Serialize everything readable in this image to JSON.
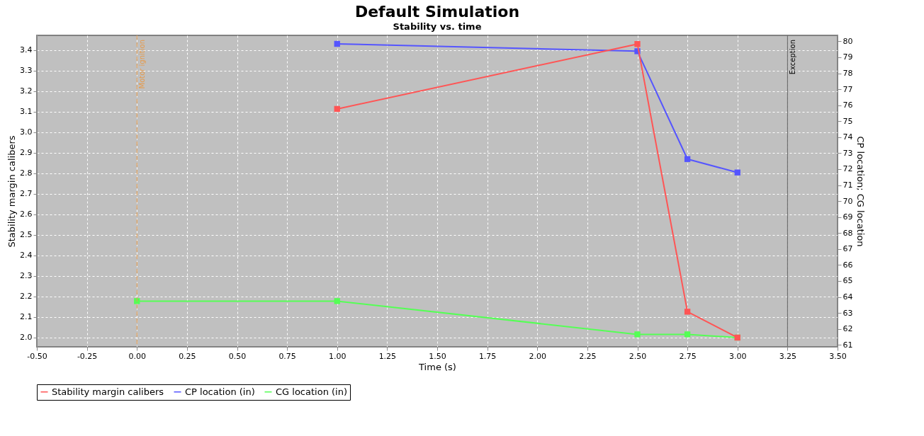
{
  "chart_data": {
    "type": "line",
    "title": "Default Simulation",
    "subtitle": "Stability vs. time",
    "xlabel": "Time (s)",
    "ylabel": "Stability margin calibers",
    "y2label": "CP location; CG location",
    "xlim": [
      -0.5,
      3.5
    ],
    "xticks": [
      {
        "value": -0.5,
        "label": "-0.50"
      },
      {
        "value": -0.25,
        "label": "-0.25"
      },
      {
        "value": 0,
        "label": "0.00"
      },
      {
        "value": 0.25,
        "label": "0.25"
      },
      {
        "value": 0.5,
        "label": "0.50"
      },
      {
        "value": 0.75,
        "label": "0.75"
      },
      {
        "value": 1,
        "label": "1.00"
      },
      {
        "value": 1.25,
        "label": "1.25"
      },
      {
        "value": 1.5,
        "label": "1.50"
      },
      {
        "value": 1.75,
        "label": "1.75"
      },
      {
        "value": 2,
        "label": "2.00"
      },
      {
        "value": 2.25,
        "label": "2.25"
      },
      {
        "value": 2.5,
        "label": "2.50"
      },
      {
        "value": 2.75,
        "label": "2.75"
      },
      {
        "value": 3,
        "label": "3.00"
      },
      {
        "value": 3.25,
        "label": "3.25"
      },
      {
        "value": 3.5,
        "label": "3.50"
      }
    ],
    "ylim": [
      1.955,
      3.471
    ],
    "yticks": [
      {
        "value": 2,
        "label": "2.0"
      },
      2.1,
      2.2,
      2.3,
      2.4,
      2.5,
      2.6,
      2.7,
      2.8,
      2.9,
      {
        "value": 3,
        "label": "3.0"
      },
      3.1,
      3.2,
      3.3,
      3.4
    ],
    "y2lim": [
      60.88,
      80.37
    ],
    "y2ticks": [
      61,
      62,
      63,
      64,
      65,
      66,
      67,
      68,
      69,
      70,
      71,
      72,
      73,
      74,
      75,
      76,
      77,
      78,
      79,
      80
    ],
    "series": [
      {
        "name": "Stability margin calibers",
        "color": "#ff5555",
        "x": [
          1,
          2.5,
          2.75,
          3
        ],
        "values": [
          3.113,
          3.429,
          2.126,
          2.0
        ]
      },
      {
        "name": "CP location (in)",
        "color": "#5555ff",
        "axis": "y2",
        "x": [
          1,
          2.5,
          2.75,
          3
        ],
        "values": [
          79.84,
          79.38,
          72.63,
          71.79
        ]
      },
      {
        "name": "CG location (in)",
        "color": "#55ff55",
        "axis": "y2",
        "x": [
          0,
          1,
          2.5,
          2.75,
          3
        ],
        "values": [
          63.74,
          63.74,
          61.66,
          61.66,
          61.46
        ]
      }
    ],
    "ref_lines": [
      {
        "axis": "x",
        "value": 0,
        "label": "Motor ignition",
        "color": "#e69a4a",
        "line_style": "dashed"
      },
      {
        "axis": "x",
        "value": 3.25,
        "label": "Exception",
        "color": "#606060",
        "line_style": "solid"
      }
    ],
    "grid": true,
    "legend": "bottom",
    "marker": "square",
    "line_style": "solid"
  }
}
